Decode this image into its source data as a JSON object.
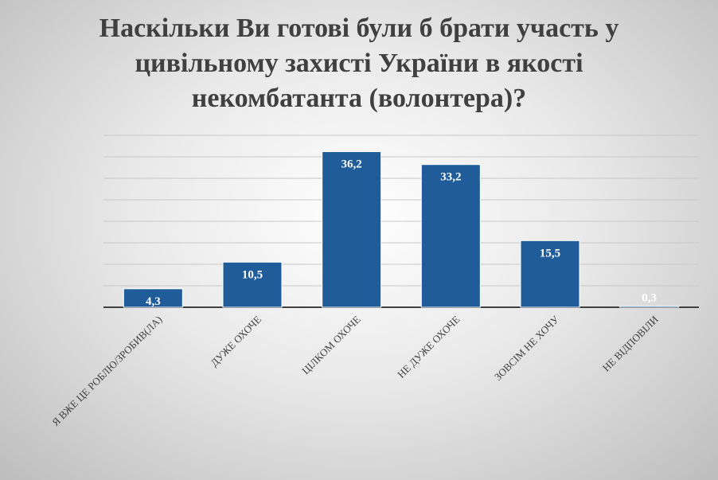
{
  "chart_data": {
    "type": "bar",
    "title": "Наскільки Ви готові були б брати участь у цивільному захисті України в якості некомбатанта (волонтера)?",
    "categories": [
      "Я ВЖЕ ЦЕ РОБЛЮ/ЗРОБИВ(ЛА)",
      "ДУЖЕ ОХОЧЕ",
      "ЦІЛКОМ ОХОЧЕ",
      "НЕ ДУЖЕ ОХОЧЕ",
      "ЗОВСІМ НЕ ХОЧУ",
      "НЕ ВІДПОВІЛИ"
    ],
    "values": [
      4.3,
      10.5,
      36.2,
      33.2,
      15.5,
      0.3
    ],
    "value_labels": [
      "4,3",
      "10,5",
      "36,2",
      "33,2",
      "15,5",
      "0,3"
    ],
    "color": "#1f5c99",
    "ylim": [
      0,
      40
    ],
    "yticks": [
      0,
      5,
      10,
      15,
      20,
      25,
      30,
      35,
      40
    ],
    "grid": true
  }
}
